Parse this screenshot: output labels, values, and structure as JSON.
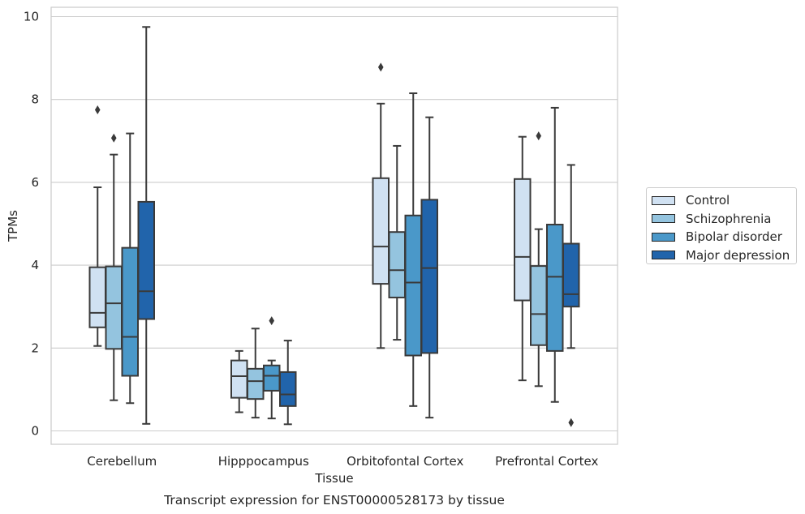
{
  "chart_data": {
    "type": "box",
    "title": "",
    "xlabel": "Tissue",
    "ylabel": "TPMs",
    "caption": "Transcript expression for ENST00000528173 by tissue",
    "ylim": [
      -0.3,
      10.2
    ],
    "yticks": [
      "0",
      "2",
      "4",
      "6",
      "8",
      "10"
    ],
    "grid": "horizontal",
    "legend_position": "right",
    "categories": [
      "Cerebellum",
      "Hipppocampus",
      "Orbitofontal Cortex",
      "Prefrontal Cortex"
    ],
    "series": [
      {
        "name": "Control",
        "color": "#d0e1f2",
        "boxes": [
          {
            "whislo": 2.05,
            "q1": 2.5,
            "med": 2.85,
            "q3": 3.95,
            "whishi": 5.88,
            "fliers": [
              7.75
            ]
          },
          {
            "whislo": 0.45,
            "q1": 0.8,
            "med": 1.32,
            "q3": 1.7,
            "whishi": 1.93,
            "fliers": []
          },
          {
            "whislo": 2.0,
            "q1": 3.55,
            "med": 4.45,
            "q3": 6.1,
            "whishi": 7.9,
            "fliers": [
              8.78
            ]
          },
          {
            "whislo": 1.22,
            "q1": 3.15,
            "med": 4.2,
            "q3": 6.08,
            "whishi": 7.1,
            "fliers": []
          }
        ]
      },
      {
        "name": "Schizophrenia",
        "color": "#94c4df",
        "boxes": [
          {
            "whislo": 0.74,
            "q1": 1.98,
            "med": 3.08,
            "q3": 3.97,
            "whishi": 6.67,
            "fliers": [
              7.07
            ]
          },
          {
            "whislo": 0.32,
            "q1": 0.77,
            "med": 1.2,
            "q3": 1.5,
            "whishi": 2.47,
            "fliers": []
          },
          {
            "whislo": 2.2,
            "q1": 3.22,
            "med": 3.88,
            "q3": 4.8,
            "whishi": 6.88,
            "fliers": []
          },
          {
            "whislo": 1.08,
            "q1": 2.07,
            "med": 2.82,
            "q3": 3.98,
            "whishi": 4.87,
            "fliers": [
              7.12
            ]
          }
        ]
      },
      {
        "name": "Bipolar disorder",
        "color": "#4a98c9",
        "boxes": [
          {
            "whislo": 0.67,
            "q1": 1.33,
            "med": 2.27,
            "q3": 4.42,
            "whishi": 7.18,
            "fliers": []
          },
          {
            "whislo": 0.3,
            "q1": 0.97,
            "med": 1.33,
            "q3": 1.58,
            "whishi": 1.7,
            "fliers": [
              2.66
            ]
          },
          {
            "whislo": 0.6,
            "q1": 1.82,
            "med": 3.58,
            "q3": 5.2,
            "whishi": 8.15,
            "fliers": []
          },
          {
            "whislo": 0.7,
            "q1": 1.93,
            "med": 3.72,
            "q3": 4.98,
            "whishi": 7.8,
            "fliers": []
          }
        ]
      },
      {
        "name": "Major depression",
        "color": "#2164ab",
        "boxes": [
          {
            "whislo": 0.17,
            "q1": 2.7,
            "med": 3.37,
            "q3": 5.53,
            "whishi": 9.75,
            "fliers": []
          },
          {
            "whislo": 0.16,
            "q1": 0.6,
            "med": 0.88,
            "q3": 1.42,
            "whishi": 2.18,
            "fliers": []
          },
          {
            "whislo": 0.32,
            "q1": 1.88,
            "med": 3.93,
            "q3": 5.58,
            "whishi": 7.57,
            "fliers": []
          },
          {
            "whislo": 2.0,
            "q1": 3.0,
            "med": 3.3,
            "q3": 4.52,
            "whishi": 6.42,
            "fliers": [
              0.2
            ]
          }
        ]
      }
    ]
  }
}
